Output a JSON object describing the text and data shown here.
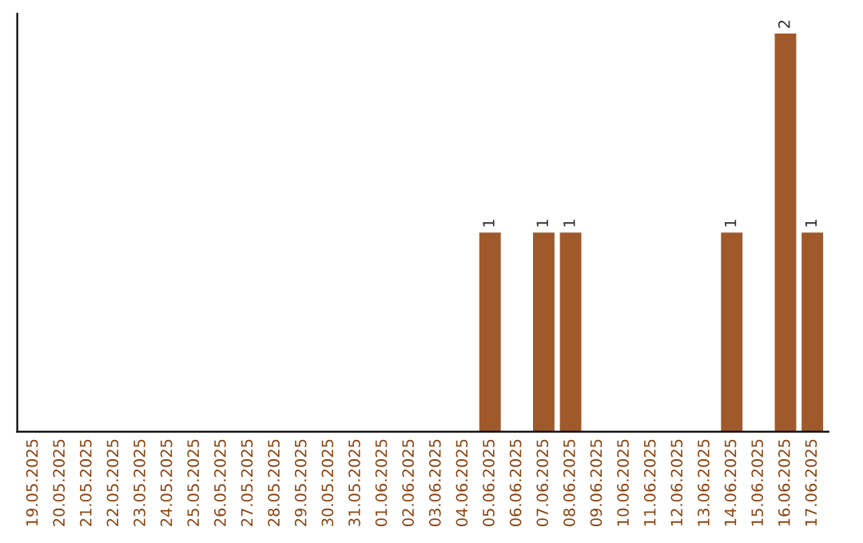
{
  "chart_data": {
    "type": "bar",
    "categories": [
      "19.05.2025",
      "20.05.2025",
      "21.05.2025",
      "22.05.2025",
      "23.05.2025",
      "24.05.2025",
      "25.05.2025",
      "26.05.2025",
      "27.05.2025",
      "28.05.2025",
      "29.05.2025",
      "30.05.2025",
      "31.05.2025",
      "01.06.2025",
      "02.06.2025",
      "03.06.2025",
      "04.06.2025",
      "05.06.2025",
      "06.06.2025",
      "07.06.2025",
      "08.06.2025",
      "09.06.2025",
      "10.06.2025",
      "11.06.2025",
      "12.06.2025",
      "13.06.2025",
      "14.06.2025",
      "15.06.2025",
      "16.06.2025",
      "17.06.2025"
    ],
    "values": [
      null,
      null,
      null,
      null,
      null,
      null,
      null,
      null,
      null,
      null,
      null,
      null,
      null,
      null,
      null,
      null,
      null,
      1,
      null,
      1,
      1,
      null,
      null,
      null,
      null,
      null,
      1,
      null,
      2,
      1
    ],
    "data_labels": true,
    "color": "#a0592a",
    "tick_labels": "x",
    "grid": false,
    "legend": false
  }
}
